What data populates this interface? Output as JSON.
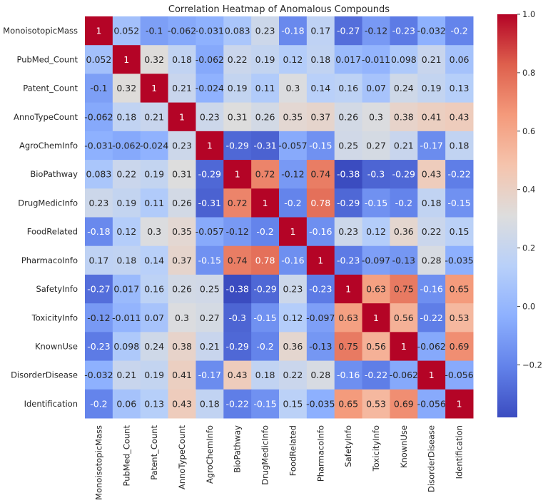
{
  "chart_data": {
    "type": "heatmap",
    "title": "Correlation Heatmap of Anomalous Compounds",
    "xlabel": "",
    "ylabel": "",
    "colormap": "coolwarm",
    "vmin": -0.38,
    "vmax": 1.0,
    "labels": [
      "MonoisotopicMass",
      "PubMed_Count",
      "Patent_Count",
      "AnnoTypeCount",
      "AgroChemInfo",
      "BioPathway",
      "DrugMedicInfo",
      "FoodRelated",
      "PharmacoInfo",
      "SafetyInfo",
      "ToxicityInfo",
      "KnownUse",
      "DisorderDisease",
      "Identification"
    ],
    "matrix": [
      [
        1,
        0.052,
        -0.1,
        -0.062,
        -0.031,
        0.083,
        0.23,
        -0.18,
        0.17,
        -0.27,
        -0.12,
        -0.23,
        -0.032,
        -0.2
      ],
      [
        0.052,
        1,
        0.32,
        0.18,
        -0.062,
        0.22,
        0.19,
        0.12,
        0.18,
        0.017,
        -0.011,
        0.098,
        0.21,
        0.06
      ],
      [
        -0.1,
        0.32,
        1,
        0.21,
        -0.024,
        0.19,
        0.11,
        0.3,
        0.14,
        0.16,
        0.07,
        0.24,
        0.19,
        0.13
      ],
      [
        -0.062,
        0.18,
        0.21,
        1,
        0.23,
        0.31,
        0.26,
        0.35,
        0.37,
        0.26,
        0.3,
        0.38,
        0.41,
        0.43
      ],
      [
        -0.031,
        -0.062,
        -0.024,
        0.23,
        1,
        -0.29,
        -0.31,
        -0.057,
        -0.15,
        0.25,
        0.27,
        0.21,
        -0.17,
        0.18
      ],
      [
        0.083,
        0.22,
        0.19,
        0.31,
        -0.29,
        1,
        0.72,
        -0.12,
        0.74,
        -0.38,
        -0.3,
        -0.29,
        0.43,
        -0.22
      ],
      [
        0.23,
        0.19,
        0.11,
        0.26,
        -0.31,
        0.72,
        1,
        -0.2,
        0.78,
        -0.29,
        -0.15,
        -0.2,
        0.18,
        -0.15
      ],
      [
        -0.18,
        0.12,
        0.3,
        0.35,
        -0.057,
        -0.12,
        -0.2,
        1,
        -0.16,
        0.23,
        0.12,
        0.36,
        0.22,
        0.15
      ],
      [
        0.17,
        0.18,
        0.14,
        0.37,
        -0.15,
        0.74,
        0.78,
        -0.16,
        1,
        -0.23,
        -0.097,
        -0.13,
        0.28,
        -0.035
      ],
      [
        -0.27,
        0.017,
        0.16,
        0.26,
        0.25,
        -0.38,
        -0.29,
        0.23,
        -0.23,
        1,
        0.63,
        0.75,
        -0.16,
        0.65
      ],
      [
        -0.12,
        -0.011,
        0.07,
        0.3,
        0.27,
        -0.3,
        -0.15,
        0.12,
        -0.097,
        0.63,
        1,
        0.56,
        -0.22,
        0.53
      ],
      [
        -0.23,
        0.098,
        0.24,
        0.38,
        0.21,
        -0.29,
        -0.2,
        0.36,
        -0.13,
        0.75,
        0.56,
        1,
        -0.062,
        0.69
      ],
      [
        -0.032,
        0.21,
        0.19,
        0.41,
        -0.17,
        0.43,
        0.18,
        0.22,
        0.28,
        -0.16,
        -0.22,
        -0.062,
        1,
        -0.056
      ],
      [
        -0.2,
        0.06,
        0.13,
        0.43,
        0.18,
        -0.22,
        -0.15,
        0.15,
        -0.035,
        0.65,
        0.53,
        0.69,
        -0.056,
        1
      ]
    ],
    "colorbar": {
      "ticks": [
        -0.2,
        0.0,
        0.2,
        0.4,
        0.6,
        0.8,
        1.0
      ],
      "tick_labels": [
        "−0.2",
        "0.0",
        "0.2",
        "0.4",
        "0.6",
        "0.8",
        "1.0"
      ],
      "placement": "right"
    },
    "annotations": true,
    "grid": false
  }
}
